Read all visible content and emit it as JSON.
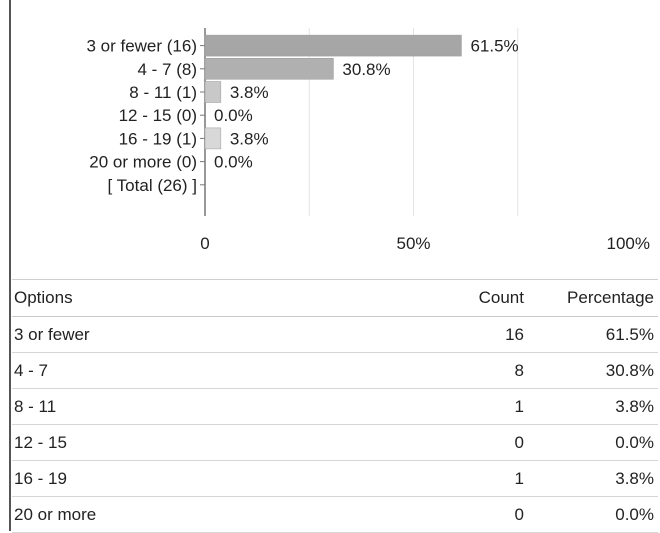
{
  "chart_data": {
    "type": "bar",
    "orientation": "horizontal",
    "categories": [
      "3 or fewer (16)",
      "4 - 7 (8)",
      "8 - 11 (1)",
      "12 - 15 (0)",
      "16 - 19 (1)",
      "20 or more (0)",
      "[ Total (26) ]"
    ],
    "values": [
      61.5,
      30.8,
      3.8,
      0.0,
      3.8,
      0.0,
      null
    ],
    "value_labels": [
      "61.5%",
      "30.8%",
      "3.8%",
      "0.0%",
      "3.8%",
      "0.0%",
      ""
    ],
    "bar_colors": [
      "#a6a6a6",
      "#b0b0b0",
      "#c8c8c8",
      "#cccccc",
      "#d8d8d8",
      "#cccccc",
      "#ffffff"
    ],
    "xlim": [
      0,
      100
    ],
    "xticks": [
      0,
      50,
      100
    ],
    "xtick_labels": [
      "0",
      "50%",
      "100%"
    ],
    "grid": true
  },
  "table": {
    "headers": {
      "option": "Options",
      "count": "Count",
      "percentage": "Percentage"
    },
    "rows": [
      {
        "option": "3 or fewer",
        "count": "16",
        "percentage": "61.5%"
      },
      {
        "option": "4 - 7",
        "count": "8",
        "percentage": "30.8%"
      },
      {
        "option": "8 - 11",
        "count": "1",
        "percentage": "3.8%"
      },
      {
        "option": "12 - 15",
        "count": "0",
        "percentage": "0.0%"
      },
      {
        "option": "16 - 19",
        "count": "1",
        "percentage": "3.8%"
      },
      {
        "option": "20 or more",
        "count": "0",
        "percentage": "0.0%"
      }
    ]
  }
}
